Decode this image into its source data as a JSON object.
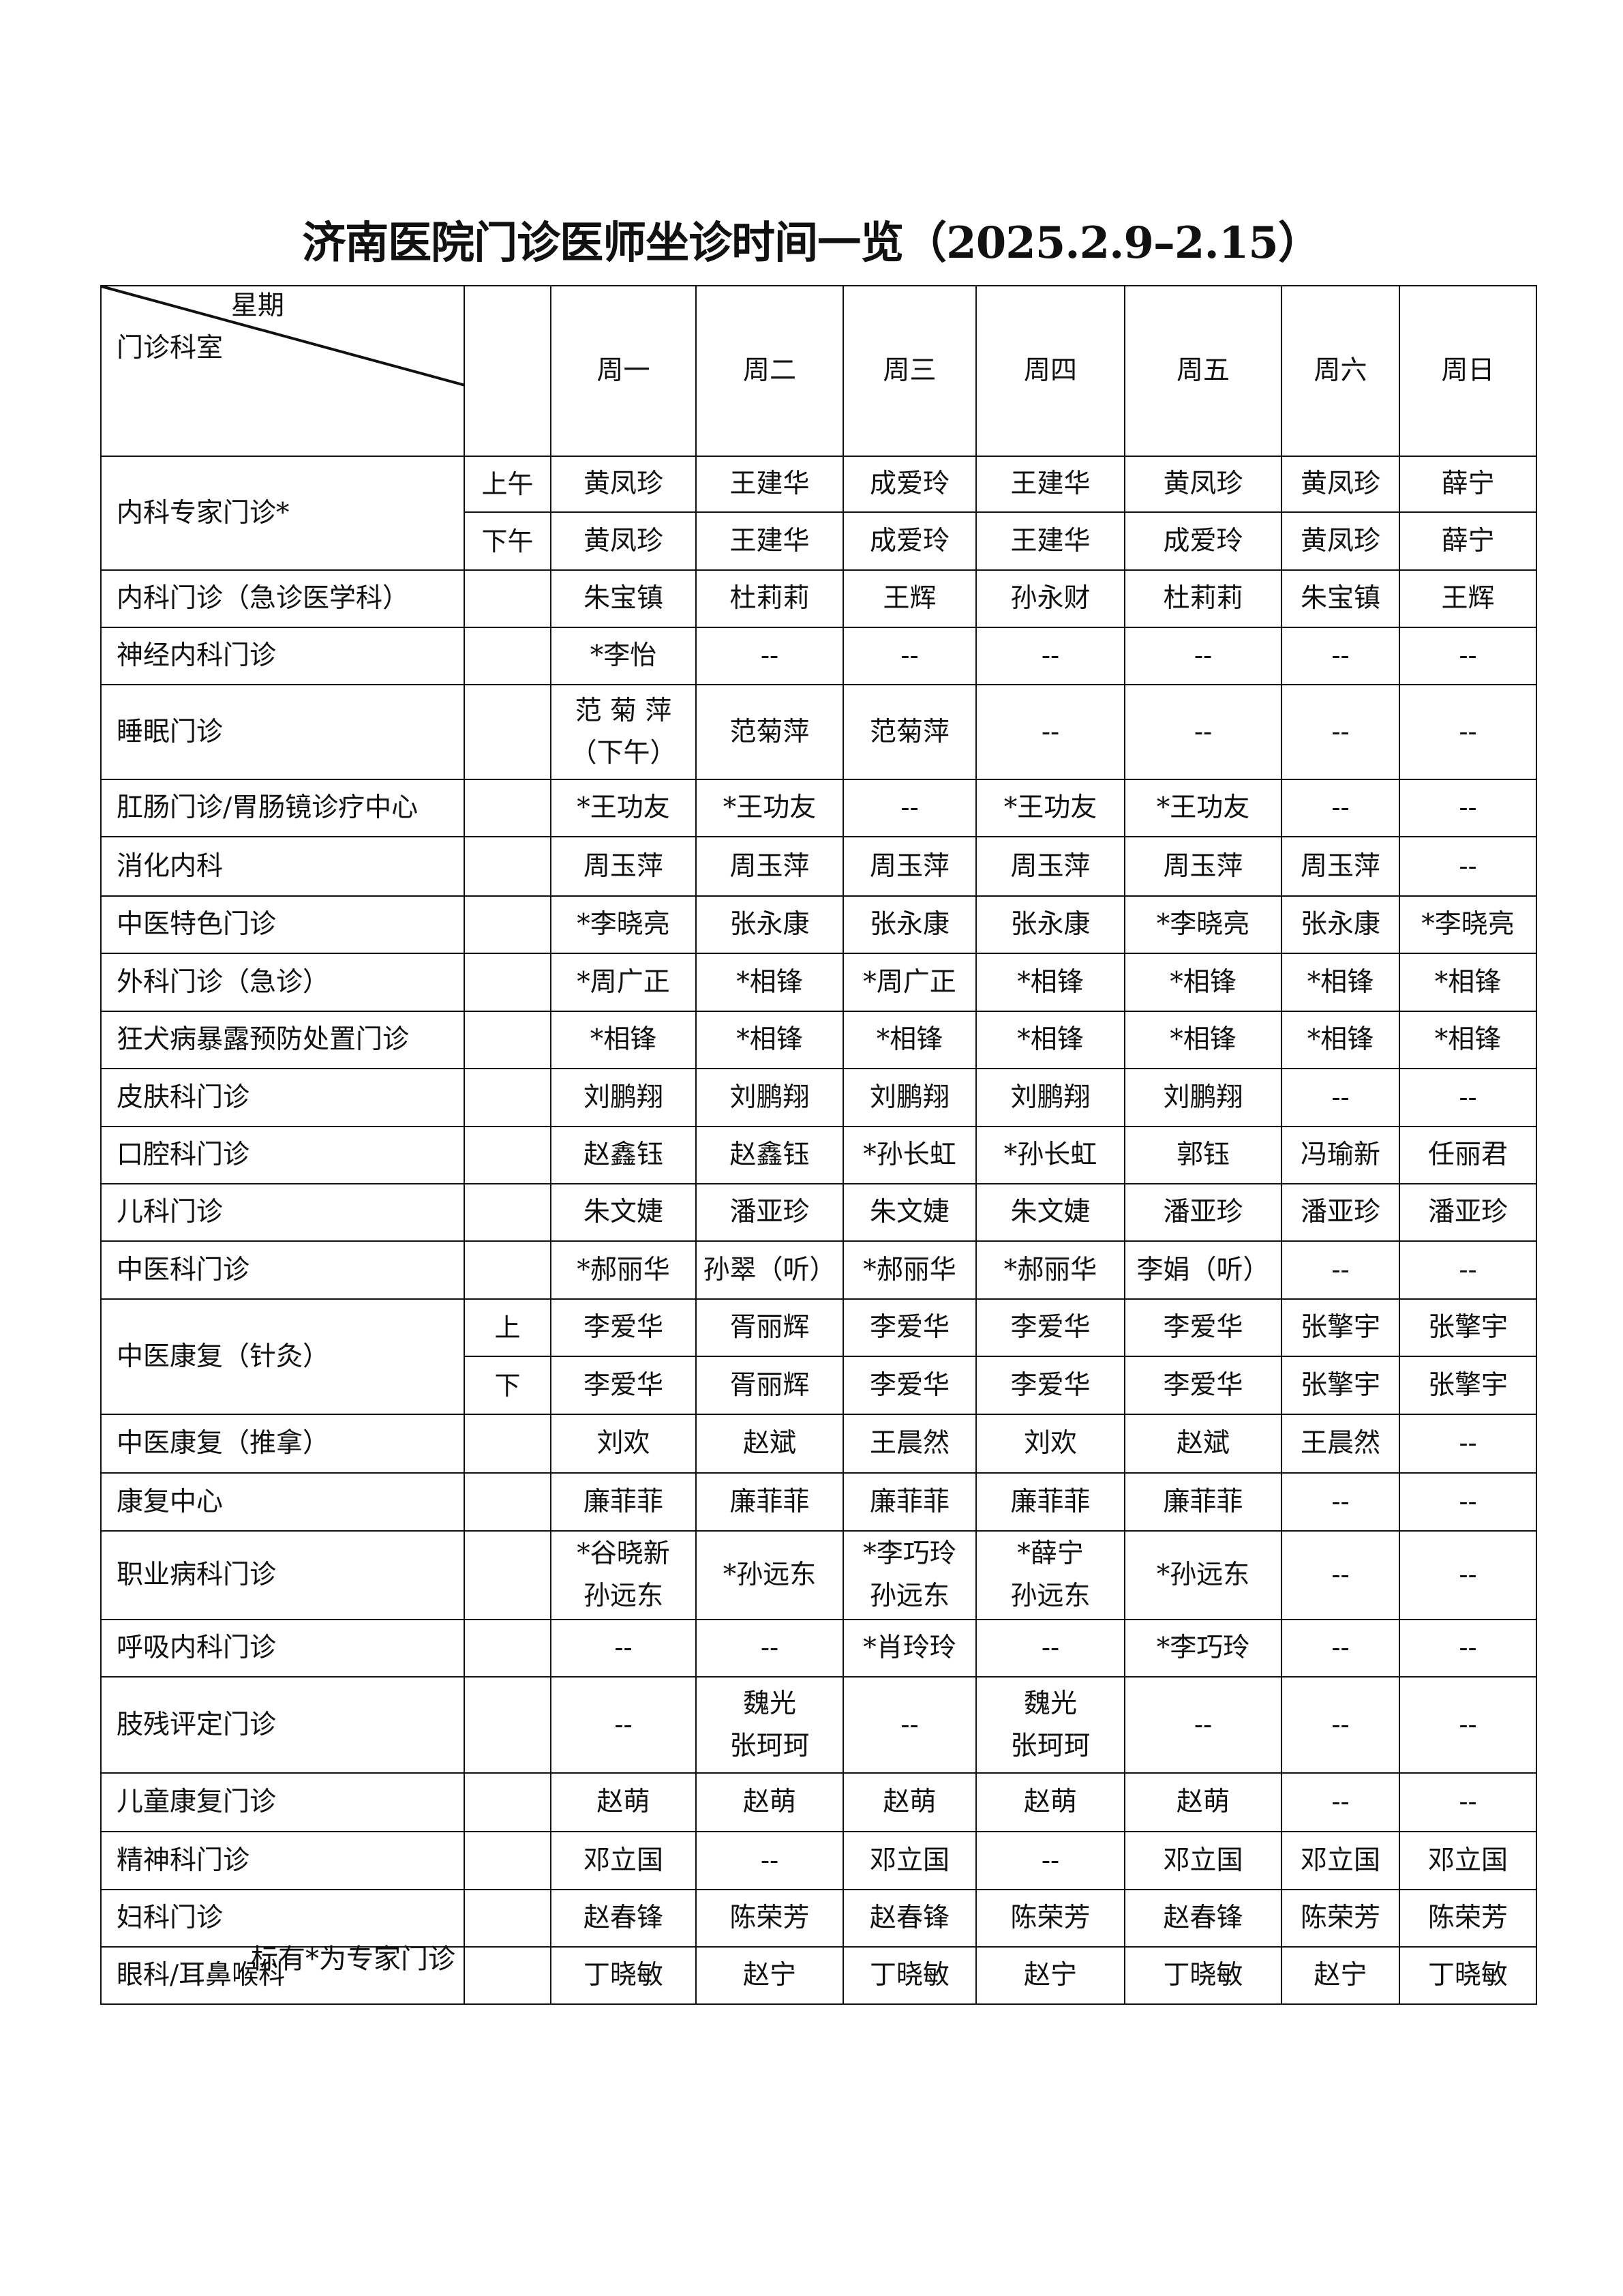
{
  "title": "济南医院门诊医师坐诊时间一览（2025.2.9–2.15）",
  "header": {
    "corner_top": "星期",
    "corner_bottom": "门诊科室",
    "days": [
      "周一",
      "周二",
      "周三",
      "周四",
      "周五",
      "周六",
      "周日"
    ]
  },
  "rows": [
    {
      "dept": "内科专家门诊*",
      "subs": [
        {
          "label": "上午",
          "cells": [
            "黄凤珍",
            "王建华",
            "成爱玲",
            "王建华",
            "黄凤珍",
            "黄凤珍",
            "薛宁"
          ]
        },
        {
          "label": "下午",
          "cells": [
            "黄凤珍",
            "王建华",
            "成爱玲",
            "王建华",
            "成爱玲",
            "黄凤珍",
            "薛宁"
          ]
        }
      ]
    },
    {
      "dept": "内科门诊（急诊医学科）",
      "cells": [
        "朱宝镇",
        "杜莉莉",
        "王辉",
        "孙永财",
        "杜莉莉",
        "朱宝镇",
        "王辉"
      ]
    },
    {
      "dept": "神经内科门诊",
      "cells": [
        "*李怡",
        "--",
        "--",
        "--",
        "--",
        "--",
        "--"
      ]
    },
    {
      "dept": "睡眠门诊",
      "cells": [
        "范 菊 萍\n（下午）",
        "范菊萍",
        "范菊萍",
        "--",
        "--",
        "--",
        "--"
      ]
    },
    {
      "dept": "肛肠门诊/胃肠镜诊疗中心",
      "cells": [
        "*王功友",
        "*王功友",
        "--",
        "*王功友",
        "*王功友",
        "--",
        "--"
      ]
    },
    {
      "dept": "消化内科",
      "cells": [
        "周玉萍",
        "周玉萍",
        "周玉萍",
        "周玉萍",
        "周玉萍",
        "周玉萍",
        "--"
      ]
    },
    {
      "dept": "中医特色门诊",
      "cells": [
        "*李晓亮",
        "张永康",
        "张永康",
        "张永康",
        "*李晓亮",
        "张永康",
        "*李晓亮"
      ]
    },
    {
      "dept": "外科门诊（急诊）",
      "cells": [
        "*周广正",
        "*相锋",
        "*周广正",
        "*相锋",
        "*相锋",
        "*相锋",
        "*相锋"
      ]
    },
    {
      "dept": "狂犬病暴露预防处置门诊",
      "cells": [
        "*相锋",
        "*相锋",
        "*相锋",
        "*相锋",
        "*相锋",
        "*相锋",
        "*相锋"
      ]
    },
    {
      "dept": "皮肤科门诊",
      "cells": [
        "刘鹏翔",
        "刘鹏翔",
        "刘鹏翔",
        "刘鹏翔",
        "刘鹏翔",
        "--",
        "--"
      ]
    },
    {
      "dept": "口腔科门诊",
      "cells": [
        "赵鑫钰",
        "赵鑫钰",
        "*孙长虹",
        "*孙长虹",
        "郭钰",
        "冯瑜新",
        "任丽君"
      ]
    },
    {
      "dept": "儿科门诊",
      "cells": [
        "朱文婕",
        "潘亚珍",
        "朱文婕",
        "朱文婕",
        "潘亚珍",
        "潘亚珍",
        "潘亚珍"
      ]
    },
    {
      "dept": "中医科门诊",
      "cells": [
        "*郝丽华",
        "孙翠（听）",
        "*郝丽华",
        "*郝丽华",
        "李娟（听）",
        "--",
        "--"
      ]
    },
    {
      "dept": "中医康复（针灸）",
      "subs": [
        {
          "label": "上",
          "cells": [
            "李爱华",
            "胥丽辉",
            "李爱华",
            "李爱华",
            "李爱华",
            "张擎宇",
            "张擎宇"
          ]
        },
        {
          "label": "下",
          "cells": [
            "李爱华",
            "胥丽辉",
            "李爱华",
            "李爱华",
            "李爱华",
            "张擎宇",
            "张擎宇"
          ]
        }
      ]
    },
    {
      "dept": "中医康复（推拿）",
      "cells": [
        "刘欢",
        "赵斌",
        "王晨然",
        "刘欢",
        "赵斌",
        "王晨然",
        "--"
      ]
    },
    {
      "dept": "康复中心",
      "cells": [
        "廉菲菲",
        "廉菲菲",
        "廉菲菲",
        "廉菲菲",
        "廉菲菲",
        "--",
        "--"
      ]
    },
    {
      "dept": "职业病科门诊",
      "cells": [
        "*谷晓新\n孙远东",
        "*孙远东",
        "*李巧玲\n孙远东",
        "*薛宁\n孙远东",
        "*孙远东",
        "--",
        "--"
      ]
    },
    {
      "dept": "呼吸内科门诊",
      "cells": [
        "--",
        "--",
        "*肖玲玲",
        "--",
        "*李巧玲",
        "--",
        "--"
      ]
    },
    {
      "dept": "肢残评定门诊",
      "cells": [
        "--",
        "魏光\n张珂珂",
        "--",
        "魏光\n张珂珂",
        "--",
        "--",
        "--"
      ]
    },
    {
      "dept": "儿童康复门诊",
      "cells": [
        "赵萌",
        "赵萌",
        "赵萌",
        "赵萌",
        "赵萌",
        "--",
        "--"
      ]
    },
    {
      "dept": "精神科门诊",
      "cells": [
        "邓立国",
        "--",
        "邓立国",
        "--",
        "邓立国",
        "邓立国",
        "邓立国"
      ]
    },
    {
      "dept": "妇科门诊",
      "cells": [
        "赵春锋",
        "陈荣芳",
        "赵春锋",
        "陈荣芳",
        "赵春锋",
        "陈荣芳",
        "陈荣芳"
      ]
    },
    {
      "dept": "眼科/耳鼻喉科",
      "cells": [
        "丁晓敏",
        "赵宁",
        "丁晓敏",
        "赵宁",
        "丁晓敏",
        "赵宁",
        "丁晓敏"
      ]
    }
  ],
  "footnote": "标有*为专家门诊"
}
